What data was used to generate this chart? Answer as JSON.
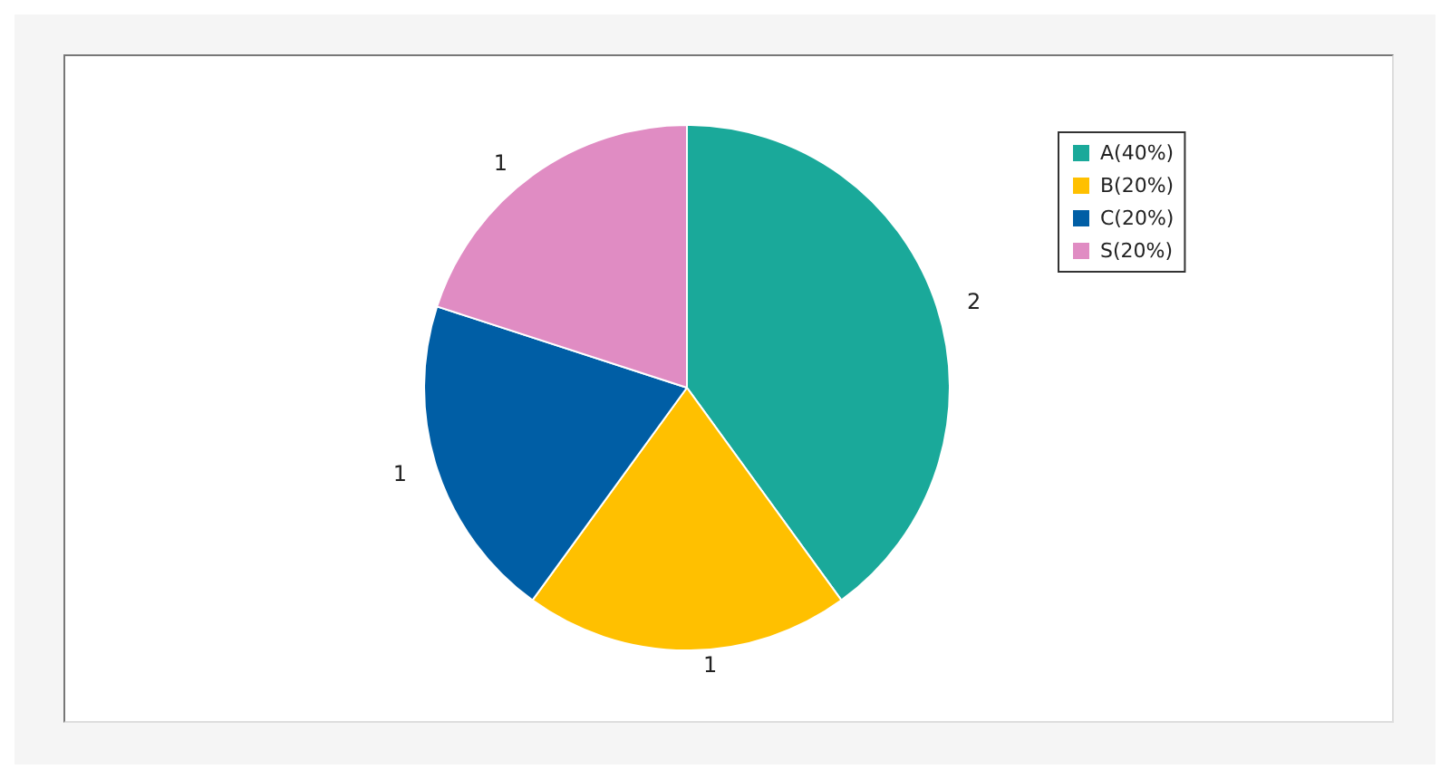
{
  "chart_data": {
    "type": "pie",
    "categories": [
      "A(40%)",
      "B(20%)",
      "C(20%)",
      "S(20%)"
    ],
    "values": [
      2,
      1,
      1,
      1
    ],
    "colors": [
      "#1aa99a",
      "#ffc000",
      "#005ea5",
      "#e08cc3"
    ],
    "data_labels": true,
    "legend": "top right"
  }
}
